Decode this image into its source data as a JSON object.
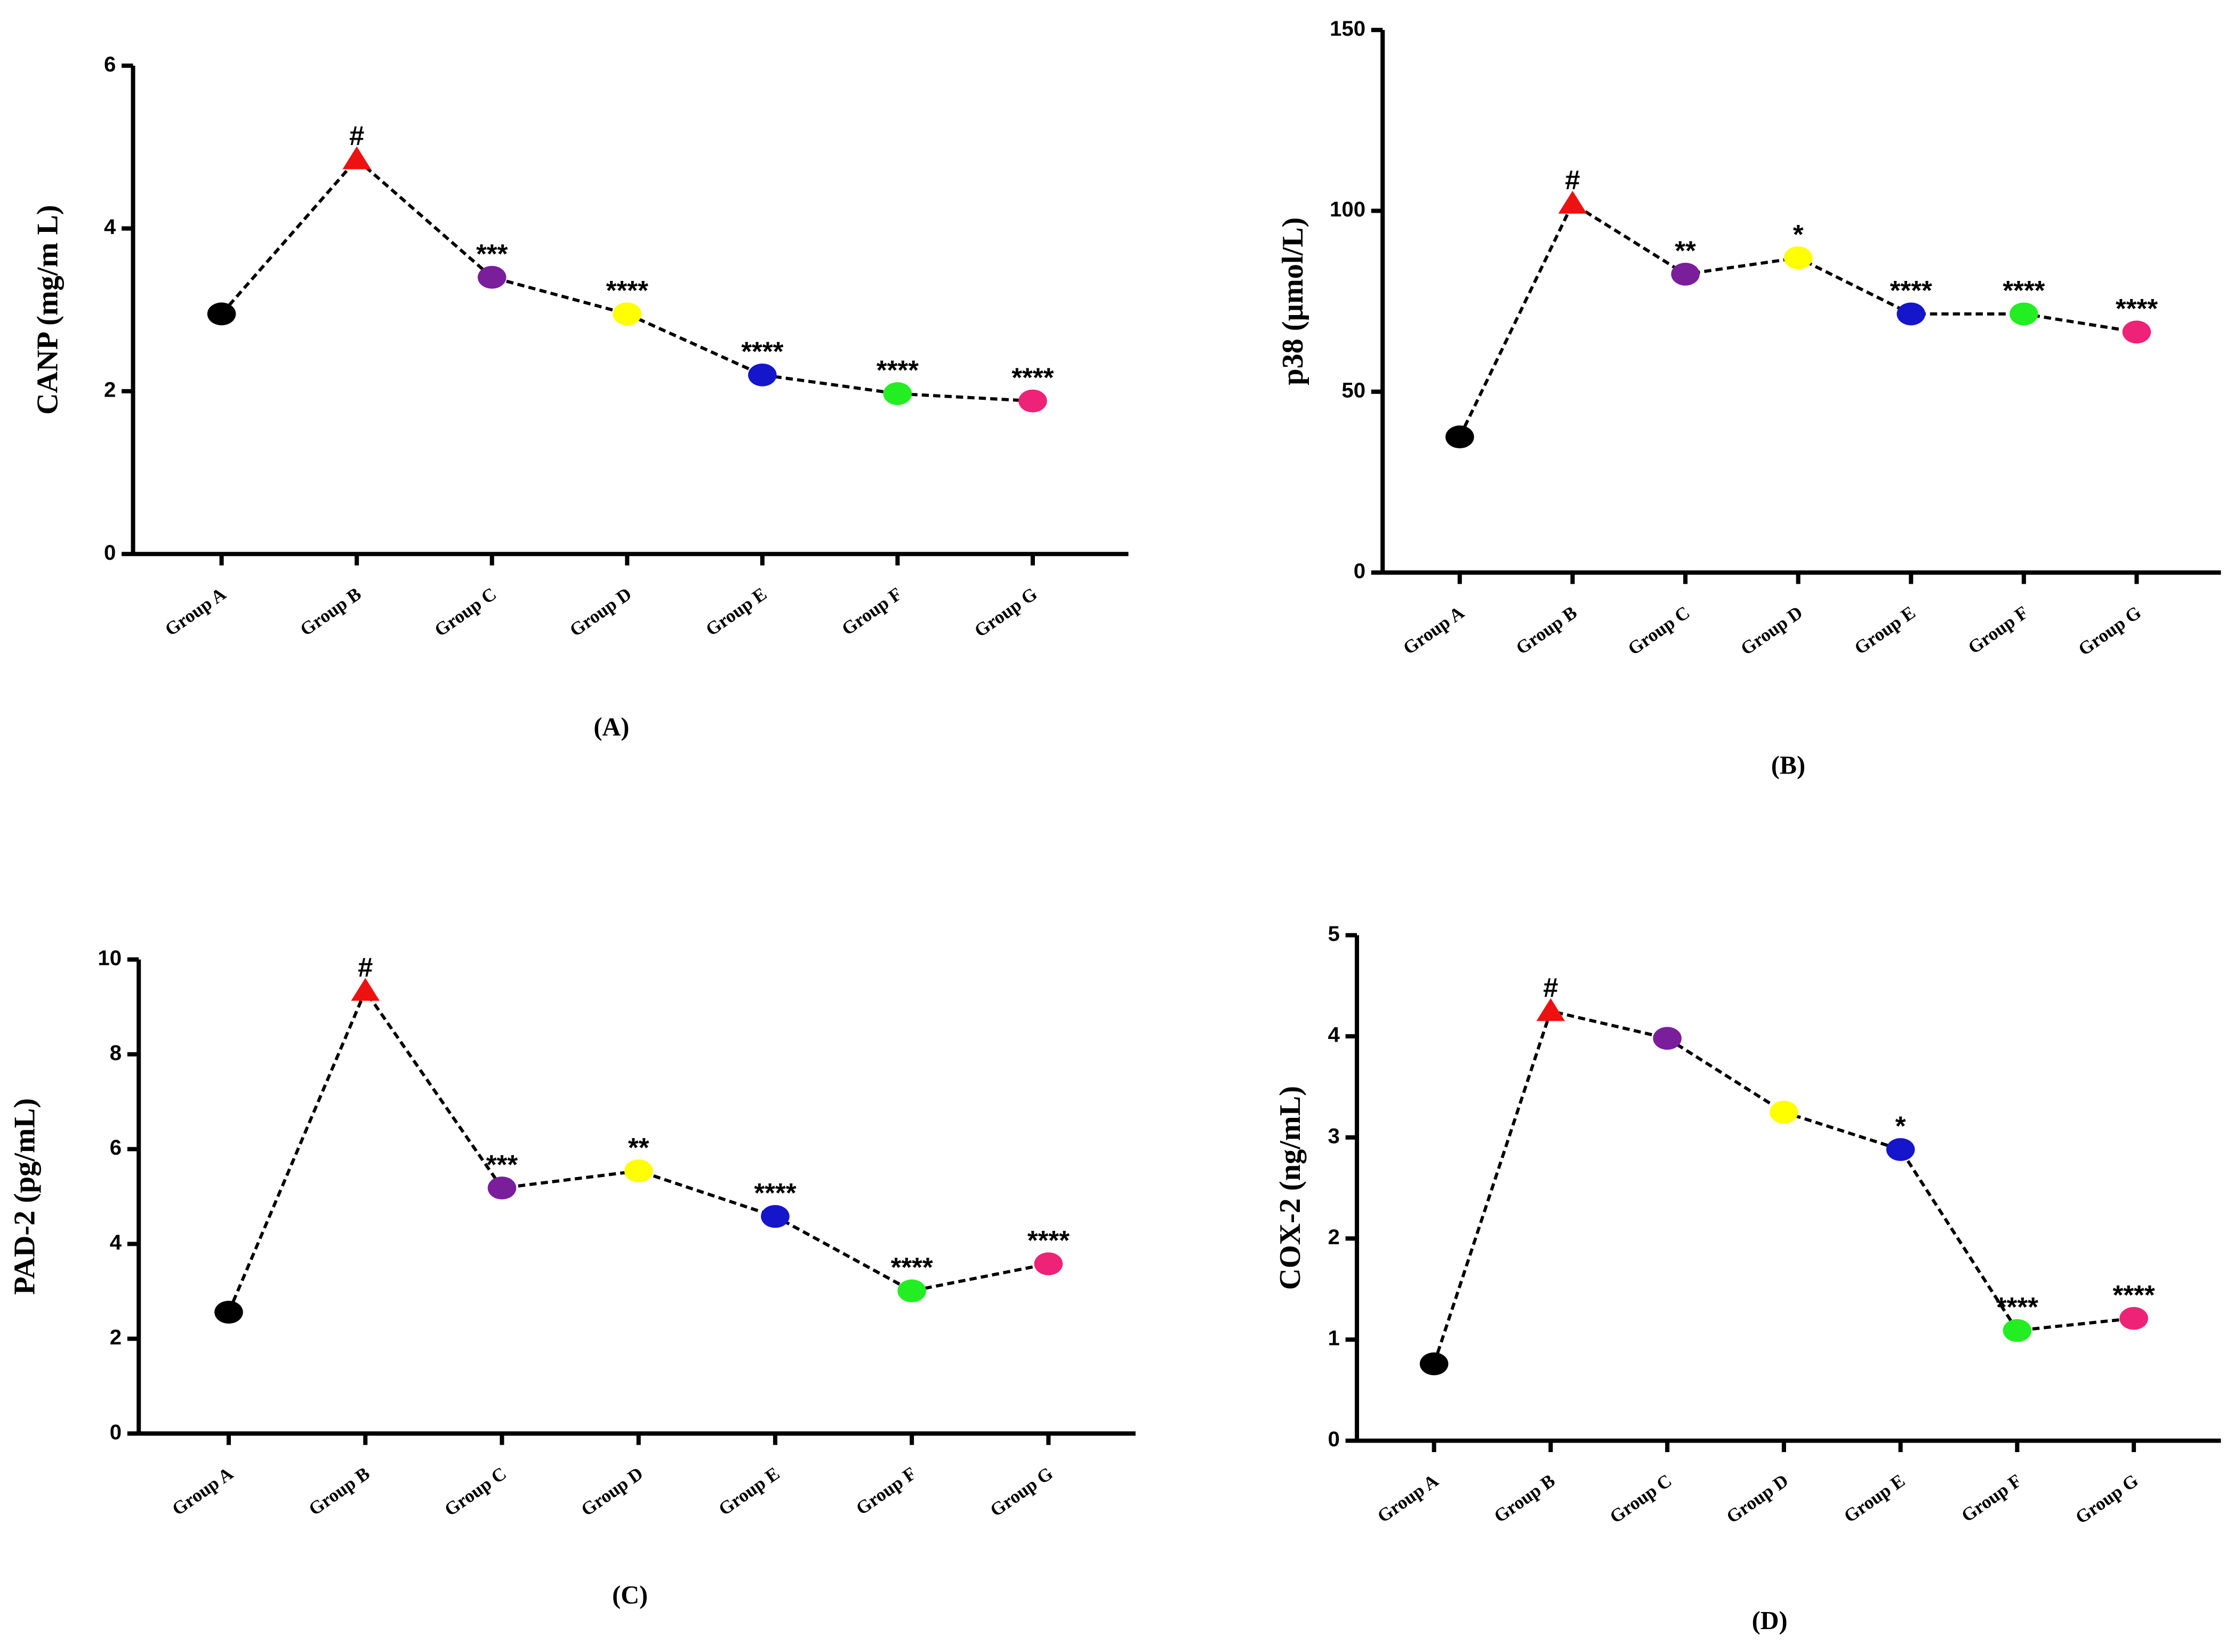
{
  "chart_data": [
    {
      "type": "line",
      "panel_label": "(A)",
      "y_label": "CANP (mg/m L)",
      "categories": [
        "Group A",
        "Group B",
        "Group C",
        "Group D",
        "Group E",
        "Group F",
        "Group G"
      ],
      "values": [
        2.95,
        4.85,
        3.4,
        2.95,
        2.2,
        1.97,
        1.88
      ],
      "point_colors": [
        "#000000",
        "#ee1111",
        "#7a1e9c",
        "#ffff00",
        "#1515cc",
        "#22ee22",
        "#ee2277"
      ],
      "markers": [
        "circle",
        "triangle",
        "circle",
        "circle",
        "circle",
        "circle",
        "circle"
      ],
      "annotations": [
        null,
        "#",
        "***",
        "****",
        "****",
        "****",
        "****"
      ],
      "line_color": "#000000",
      "line_style": "dashed",
      "ylim": [
        0,
        6
      ],
      "yticks": [
        0,
        2,
        4,
        6
      ]
    },
    {
      "type": "line",
      "panel_label": "(B)",
      "y_label": "p38 (µmol/L)",
      "categories": [
        "Group A",
        "Group B",
        "Group C",
        "Group D",
        "Group E",
        "Group F",
        "Group G"
      ],
      "values": [
        37.5,
        102,
        82.5,
        87,
        71.5,
        71.5,
        66.5
      ],
      "point_colors": [
        "#000000",
        "#ee1111",
        "#7a1e9c",
        "#ffff00",
        "#1515cc",
        "#22ee22",
        "#ee2277"
      ],
      "markers": [
        "circle",
        "triangle",
        "circle",
        "circle",
        "circle",
        "circle",
        "circle"
      ],
      "annotations": [
        null,
        "#",
        "**",
        "*",
        "****",
        "****",
        "****"
      ],
      "line_color": "#000000",
      "line_style": "dashed",
      "ylim": [
        0,
        150
      ],
      "yticks": [
        0,
        50,
        100,
        150
      ]
    },
    {
      "type": "line",
      "panel_label": "(C)",
      "y_label": "PAD-2 (pg/mL)",
      "categories": [
        "Group A",
        "Group B",
        "Group C",
        "Group D",
        "Group E",
        "Group F",
        "Group G"
      ],
      "values": [
        2.56,
        9.34,
        5.18,
        5.54,
        4.58,
        3.01,
        3.58
      ],
      "point_colors": [
        "#000000",
        "#ee1111",
        "#7a1e9c",
        "#ffff00",
        "#1515cc",
        "#22ee22",
        "#ee2277"
      ],
      "markers": [
        "circle",
        "triangle",
        "circle",
        "circle",
        "circle",
        "circle",
        "circle"
      ],
      "annotations": [
        null,
        "#",
        "***",
        "**",
        "****",
        "****",
        "****"
      ],
      "line_color": "#000000",
      "line_style": "dashed",
      "ylim": [
        0,
        10
      ],
      "yticks": [
        0,
        2,
        4,
        6,
        8,
        10
      ]
    },
    {
      "type": "line",
      "panel_label": "(D)",
      "y_label": "COX-2 (ng/mL)",
      "categories": [
        "Group A",
        "Group B",
        "Group C",
        "Group D",
        "Group E",
        "Group F",
        "Group G"
      ],
      "values": [
        0.76,
        4.25,
        3.98,
        3.25,
        2.88,
        1.09,
        1.21
      ],
      "point_colors": [
        "#000000",
        "#ee1111",
        "#7a1e9c",
        "#ffff00",
        "#1515cc",
        "#22ee22",
        "#ee2277"
      ],
      "markers": [
        "circle",
        "triangle",
        "circle",
        "circle",
        "circle",
        "circle",
        "circle"
      ],
      "annotations": [
        null,
        "#",
        null,
        null,
        "*",
        "****",
        "****"
      ],
      "line_color": "#000000",
      "line_style": "dashed",
      "ylim": [
        0,
        5
      ],
      "yticks": [
        0,
        1,
        2,
        3,
        4,
        5
      ]
    }
  ]
}
